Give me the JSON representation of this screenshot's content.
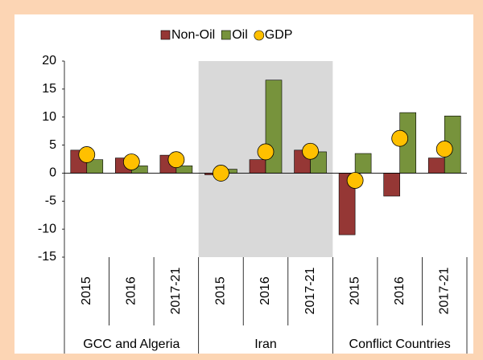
{
  "chart_data": {
    "type": "bar",
    "groups": [
      {
        "name": "GCC and Algeria",
        "categories": [
          "2015",
          "2016",
          "2017-21"
        ]
      },
      {
        "name": "Iran",
        "categories": [
          "2015",
          "2016",
          "2017-21"
        ]
      },
      {
        "name": "Conflict Countries",
        "categories": [
          "2015",
          "2016",
          "2017-21"
        ]
      }
    ],
    "shaded_group": 1,
    "series": [
      {
        "name": "Non-Oil",
        "style": "bar",
        "color": "#953735",
        "values": [
          4.1,
          2.7,
          3.2,
          -0.3,
          2.4,
          4.1,
          -11,
          -4.1,
          2.7
        ]
      },
      {
        "name": "Oil",
        "style": "bar",
        "color": "#77933c",
        "values": [
          2.4,
          1.3,
          1.3,
          0.7,
          16.6,
          3.8,
          3.5,
          10.8,
          10.2
        ]
      },
      {
        "name": "GDP",
        "style": "marker",
        "color": "#ffc000",
        "values": [
          3.3,
          2.0,
          2.4,
          0.0,
          3.8,
          3.9,
          -1.3,
          6.2,
          4.3
        ]
      }
    ],
    "ylim": [
      -15,
      20
    ],
    "yticks": [
      -15,
      -10,
      -5,
      0,
      5,
      10,
      15,
      20
    ],
    "legend": "top"
  }
}
